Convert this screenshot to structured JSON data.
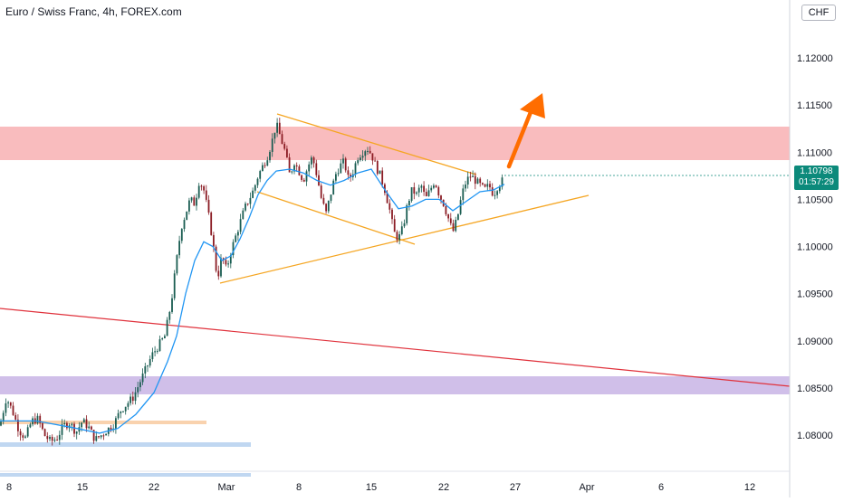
{
  "header": {
    "title": "Euro / Swiss Franc, 4h, FOREX.com",
    "currency": "CHF"
  },
  "price_scale": {
    "current_price": "1.10798",
    "countdown": "01:57:29"
  },
  "chart_data": {
    "type": "candlestick",
    "title": "Euro / Swiss Franc, 4h, FOREX.com",
    "symbol": "EURCHF",
    "timeframe": "4h",
    "x_tick_labels": [
      "8",
      "15",
      "22",
      "Mar",
      "8",
      "15",
      "22",
      "27",
      "Apr",
      "6",
      "12"
    ],
    "y_tick_labels": [
      "1.12000",
      "1.11500",
      "1.11000",
      "1.10500",
      "1.10000",
      "1.09500",
      "1.09000",
      "1.08500",
      "1.08000"
    ],
    "ylim": [
      1.0775,
      1.1255
    ],
    "current_price": 1.10798,
    "colors": {
      "up": "#1a5d52",
      "down": "#8b1c24",
      "ma": "#2196f3",
      "trendline": "#f5a623",
      "arrow": "#ff6d00",
      "price_label": "#0c8a7b"
    },
    "price_path": [
      [
        0,
        1.081
      ],
      [
        7,
        1.084
      ],
      [
        14,
        1.0825
      ],
      [
        21,
        1.0805
      ],
      [
        28,
        1.0797
      ],
      [
        35,
        1.0815
      ],
      [
        42,
        1.0817
      ],
      [
        49,
        1.08
      ],
      [
        56,
        1.0793
      ],
      [
        63,
        1.0797
      ],
      [
        70,
        1.081
      ],
      [
        77,
        1.0813
      ],
      [
        84,
        1.0803
      ],
      [
        91,
        1.0815
      ],
      [
        98,
        1.0808
      ],
      [
        105,
        1.0795
      ],
      [
        112,
        1.08
      ],
      [
        119,
        1.0806
      ],
      [
        126,
        1.0812
      ],
      [
        133,
        1.0826
      ],
      [
        140,
        1.0833
      ],
      [
        147,
        1.084
      ],
      [
        154,
        1.0855
      ],
      [
        161,
        1.087
      ],
      [
        168,
        1.0885
      ],
      [
        175,
        1.0895
      ],
      [
        182,
        1.0905
      ],
      [
        189,
        1.094
      ],
      [
        195,
        1.0985
      ],
      [
        200,
        1.102
      ],
      [
        205,
        1.1035
      ],
      [
        210,
        1.105
      ],
      [
        215,
        1.1045
      ],
      [
        220,
        1.107
      ],
      [
        225,
        1.106
      ],
      [
        230,
        1.1035
      ],
      [
        235,
        1.1005
      ],
      [
        240,
        1.0965
      ],
      [
        245,
        1.099
      ],
      [
        250,
        1.0975
      ],
      [
        255,
        1.0995
      ],
      [
        260,
        1.101
      ],
      [
        265,
        1.1025
      ],
      [
        270,
        1.104
      ],
      [
        275,
        1.105
      ],
      [
        280,
        1.106
      ],
      [
        285,
        1.1075
      ],
      [
        290,
        1.1085
      ],
      [
        295,
        1.1095
      ],
      [
        300,
        1.111
      ],
      [
        305,
        1.113
      ],
      [
        310,
        1.1115
      ],
      [
        315,
        1.11
      ],
      [
        320,
        1.1075
      ],
      [
        325,
        1.109
      ],
      [
        330,
        1.108
      ],
      [
        335,
        1.107
      ],
      [
        340,
        1.1085
      ],
      [
        345,
        1.1095
      ],
      [
        350,
        1.1075
      ],
      [
        355,
        1.105
      ],
      [
        360,
        1.1035
      ],
      [
        365,
        1.1055
      ],
      [
        370,
        1.1075
      ],
      [
        375,
        1.1085
      ],
      [
        380,
        1.109
      ],
      [
        385,
        1.107
      ],
      [
        390,
        1.108
      ],
      [
        395,
        1.1095
      ],
      [
        400,
        1.11
      ],
      [
        405,
        1.1105
      ],
      [
        410,
        1.1098
      ],
      [
        415,
        1.1085
      ],
      [
        420,
        1.1075
      ],
      [
        425,
        1.106
      ],
      [
        430,
        1.104
      ],
      [
        435,
        1.1015
      ],
      [
        440,
        1.1008
      ],
      [
        445,
        1.102
      ],
      [
        450,
        1.1045
      ],
      [
        455,
        1.106
      ],
      [
        460,
        1.1055
      ],
      [
        465,
        1.1065
      ],
      [
        470,
        1.105
      ],
      [
        475,
        1.106
      ],
      [
        480,
        1.107
      ],
      [
        485,
        1.1055
      ],
      [
        490,
        1.1045
      ],
      [
        495,
        1.103
      ],
      [
        500,
        1.1015
      ],
      [
        505,
        1.103
      ],
      [
        510,
        1.1055
      ],
      [
        515,
        1.107
      ],
      [
        520,
        1.1075
      ],
      [
        525,
        1.107
      ],
      [
        530,
        1.1065
      ],
      [
        535,
        1.106
      ],
      [
        540,
        1.1065
      ],
      [
        545,
        1.1055
      ],
      [
        550,
        1.1065
      ],
      [
        555,
        1.107
      ],
      [
        557,
        1.1078
      ]
    ],
    "moving_average": [
      [
        0,
        1.0815
      ],
      [
        40,
        1.0815
      ],
      [
        80,
        1.0808
      ],
      [
        110,
        1.0802
      ],
      [
        130,
        1.0807
      ],
      [
        150,
        1.0822
      ],
      [
        170,
        1.0845
      ],
      [
        185,
        1.0878
      ],
      [
        195,
        1.0905
      ],
      [
        205,
        1.095
      ],
      [
        215,
        1.0985
      ],
      [
        225,
        1.1005
      ],
      [
        235,
        1.1
      ],
      [
        245,
        1.0985
      ],
      [
        255,
        1.099
      ],
      [
        265,
        1.1008
      ],
      [
        275,
        1.103
      ],
      [
        285,
        1.1055
      ],
      [
        295,
        1.107
      ],
      [
        305,
        1.108
      ],
      [
        320,
        1.1082
      ],
      [
        335,
        1.1078
      ],
      [
        350,
        1.107
      ],
      [
        365,
        1.1065
      ],
      [
        380,
        1.107
      ],
      [
        395,
        1.1078
      ],
      [
        410,
        1.1082
      ],
      [
        425,
        1.106
      ],
      [
        440,
        1.104
      ],
      [
        455,
        1.1043
      ],
      [
        470,
        1.105
      ],
      [
        485,
        1.105
      ],
      [
        500,
        1.1038
      ],
      [
        515,
        1.1048
      ],
      [
        530,
        1.1058
      ],
      [
        545,
        1.106
      ],
      [
        557,
        1.1066
      ]
    ]
  }
}
